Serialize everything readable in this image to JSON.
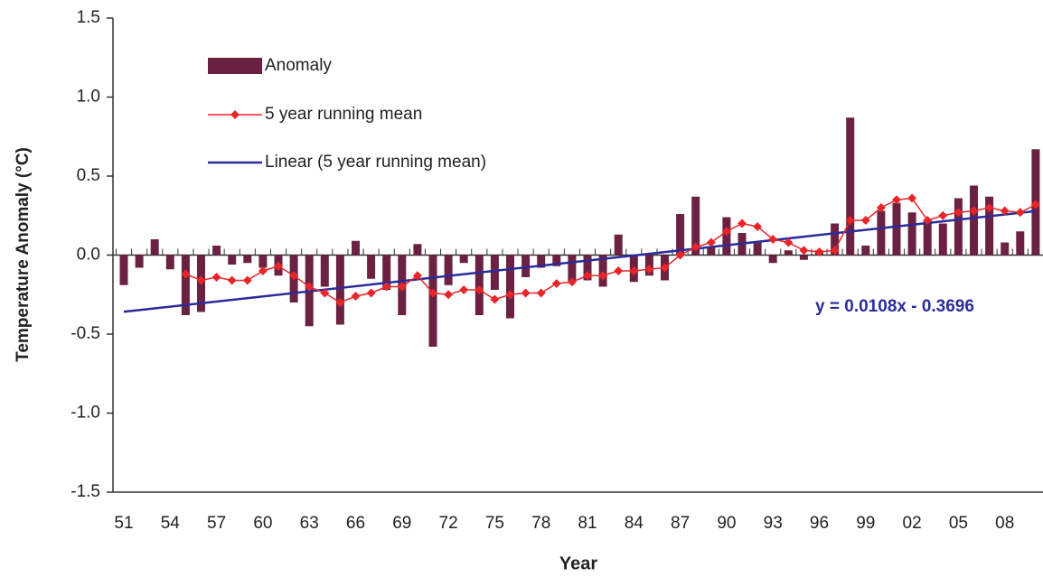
{
  "chart_data": {
    "type": "bar",
    "y_axis_label": "Temperature Anomaly (°C)",
    "x_axis_label": "Year",
    "categories": [
      "51",
      null,
      null,
      "54",
      null,
      null,
      "57",
      null,
      null,
      "60",
      null,
      null,
      "63",
      null,
      null,
      "66",
      null,
      null,
      "69",
      null,
      null,
      "72",
      null,
      null,
      "75",
      null,
      null,
      "78",
      null,
      null,
      "81",
      null,
      null,
      "84",
      null,
      null,
      "87",
      null,
      null,
      "90",
      null,
      null,
      "93",
      null,
      null,
      "96",
      null,
      null,
      "99",
      null,
      null,
      "02",
      null,
      null,
      "05",
      null,
      null,
      "08",
      null,
      null
    ],
    "series": [
      {
        "name": "Anomaly",
        "color": "#6b2242",
        "type": "bar",
        "values": [
          -0.19,
          -0.08,
          0.1,
          -0.09,
          -0.38,
          -0.36,
          0.06,
          -0.06,
          -0.05,
          -0.08,
          -0.13,
          -0.3,
          -0.45,
          -0.2,
          -0.44,
          0.09,
          -0.15,
          -0.22,
          -0.38,
          0.07,
          -0.58,
          -0.19,
          -0.05,
          -0.38,
          -0.22,
          -0.4,
          -0.14,
          -0.08,
          -0.07,
          -0.17,
          -0.16,
          -0.2,
          0.13,
          -0.17,
          -0.13,
          -0.16,
          0.26,
          0.37,
          0.05,
          0.24,
          0.14,
          0.08,
          -0.05,
          0.03,
          -0.03,
          0.03,
          0.2,
          0.87,
          0.06,
          0.28,
          0.33,
          0.27,
          0.22,
          0.2,
          0.36,
          0.44,
          0.37,
          0.08,
          0.15,
          0.67
        ]
      },
      {
        "name": "5 year running mean",
        "color": "#e8262a",
        "type": "line",
        "values": [
          null,
          null,
          null,
          null,
          -0.12,
          -0.16,
          -0.14,
          -0.16,
          -0.16,
          -0.1,
          -0.07,
          -0.13,
          -0.2,
          -0.24,
          -0.3,
          -0.26,
          -0.24,
          -0.2,
          -0.2,
          -0.13,
          -0.24,
          -0.25,
          -0.22,
          -0.22,
          -0.28,
          -0.25,
          -0.24,
          -0.24,
          -0.18,
          -0.17,
          -0.13,
          -0.13,
          -0.1,
          -0.1,
          -0.09,
          -0.08,
          0.0,
          0.05,
          0.08,
          0.15,
          0.2,
          0.18,
          0.1,
          0.08,
          0.03,
          0.02,
          0.03,
          0.22,
          0.22,
          0.3,
          0.35,
          0.36,
          0.22,
          0.25,
          0.27,
          0.28,
          0.3,
          0.28,
          0.27,
          0.32
        ]
      }
    ],
    "trend": {
      "name": "Linear (5 year running mean)",
      "color": "#2b2b9c",
      "slope": 0.0108,
      "intercept": -0.3696,
      "equation": "y = 0.0108x  - 0.3696"
    },
    "ylim": [
      -1.5,
      1.5
    ],
    "yticks": [
      -1.5,
      {
        "value": -1,
        "label": "-1.0"
      },
      -0.5,
      {
        "value": 0,
        "label": "0.0"
      },
      0.5,
      {
        "value": 1,
        "label": "1.0"
      },
      1.5
    ],
    "legend": "upper left"
  }
}
